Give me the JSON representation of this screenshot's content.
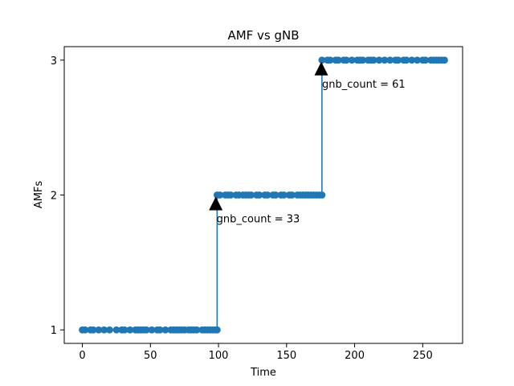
{
  "chart_data": {
    "type": "line",
    "title": "AMF vs gNB",
    "xlabel": "Time",
    "ylabel": "AMFs",
    "xlim": [
      -13.3,
      279.3
    ],
    "ylim": [
      0.9,
      3.1
    ],
    "xticks": [
      0,
      50,
      100,
      150,
      200,
      250
    ],
    "yticks": [
      1,
      2,
      3
    ],
    "grid": false,
    "line_color": "#1f77b4",
    "series": [
      {
        "x": [
          0,
          2,
          6,
          8,
          12,
          16,
          20,
          25,
          29,
          31,
          35,
          39,
          41,
          43,
          45,
          47,
          51,
          55,
          57,
          61,
          65,
          67,
          69,
          71,
          73,
          75,
          78,
          80,
          82,
          84,
          88,
          90,
          92,
          94,
          96,
          98,
          99,
          99,
          101,
          105,
          107,
          109,
          113,
          115,
          118,
          120,
          122,
          124,
          128,
          130,
          134,
          136,
          140,
          142,
          146,
          148,
          152,
          154,
          158,
          160,
          162,
          164,
          166,
          168,
          170,
          172,
          174,
          176,
          176,
          180,
          182,
          186,
          188,
          192,
          194,
          198,
          202,
          204,
          206,
          210,
          212,
          214,
          218,
          222,
          226,
          230,
          232,
          236,
          238,
          242,
          246,
          250,
          252,
          256,
          258,
          260,
          262,
          264,
          266
        ],
        "y": [
          1,
          1,
          1,
          1,
          1,
          1,
          1,
          1,
          1,
          1,
          1,
          1,
          1,
          1,
          1,
          1,
          1,
          1,
          1,
          1,
          1,
          1,
          1,
          1,
          1,
          1,
          1,
          1,
          1,
          1,
          1,
          1,
          1,
          1,
          1,
          1,
          1,
          2,
          2,
          2,
          2,
          2,
          2,
          2,
          2,
          2,
          2,
          2,
          2,
          2,
          2,
          2,
          2,
          2,
          2,
          2,
          2,
          2,
          2,
          2,
          2,
          2,
          2,
          2,
          2,
          2,
          2,
          2,
          3,
          3,
          3,
          3,
          3,
          3,
          3,
          3,
          3,
          3,
          3,
          3,
          3,
          3,
          3,
          3,
          3,
          3,
          3,
          3,
          3,
          3,
          3,
          3,
          3,
          3,
          3,
          3,
          3,
          3,
          3
        ]
      }
    ],
    "annotations": [
      {
        "text": "gnb_count = 33",
        "x": 98,
        "y": 2
      },
      {
        "text": "gnb_count = 61",
        "x": 175.5,
        "y": 3
      }
    ]
  }
}
